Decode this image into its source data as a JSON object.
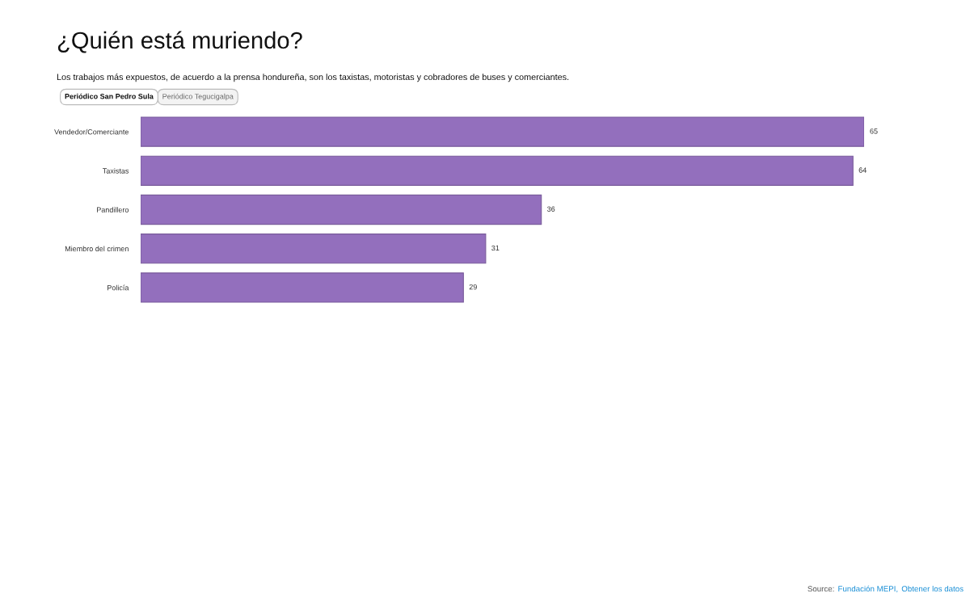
{
  "chart_data": {
    "type": "bar",
    "orientation": "horizontal",
    "title": "¿Quién está muriendo?",
    "subtitle": "Los trabajos más expuestos, de acuerdo a la prensa hondureña, son los taxistas, motoristas y cobradores de buses y comerciantes.",
    "categories": [
      "Vendedor/Comerciante",
      "Taxistas",
      "Pandillero",
      "Miembro del crimen",
      "Policía"
    ],
    "values": [
      65,
      64,
      36,
      31,
      29
    ],
    "color": "#936fbd",
    "data_labels": true,
    "tick_labels": "y",
    "annotations": [
      "Periódico San Pedro Sula",
      "Periódico Tegucigalpa",
      "Source:",
      "Fundación MEPI,",
      "Obtener los datos"
    ]
  }
}
